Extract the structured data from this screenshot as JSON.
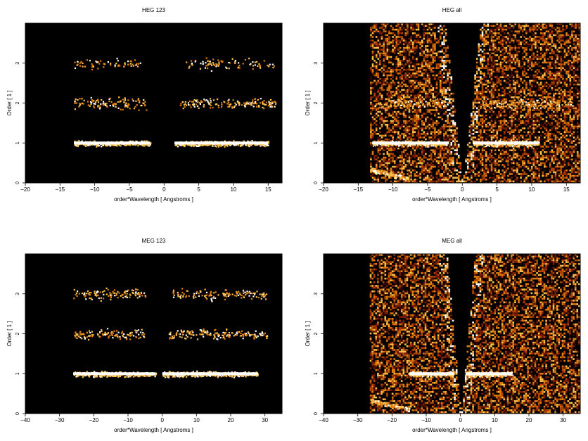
{
  "figure": {
    "colormap": [
      "#000000",
      "#3a0700",
      "#7a1d00",
      "#b34700",
      "#e07f10",
      "#ffc04a",
      "#ffffff"
    ]
  },
  "chart_data": [
    {
      "type": "heatmap",
      "title": "HEG 123",
      "xlabel": "order*Wavelength [ Angstroms ]",
      "ylabel": "Order [ 1 ]",
      "xlim": [
        -20,
        17
      ],
      "ylim": [
        0,
        4
      ],
      "xticks": [
        -20,
        -15,
        -10,
        -5,
        0,
        5,
        10,
        15
      ],
      "yticks": [
        0,
        1,
        2,
        3
      ],
      "bands": [
        {
          "order": 1,
          "x": [
            -13,
            -2
          ],
          "weight": 1.0
        },
        {
          "order": 1,
          "x": [
            1.5,
            15
          ],
          "weight": 1.0
        },
        {
          "order": 2,
          "x": [
            -13,
            -2.5
          ],
          "weight": 0.35
        },
        {
          "order": 2,
          "x": [
            2.2,
            16
          ],
          "weight": 0.35
        },
        {
          "order": 3,
          "x": [
            -13,
            -3.5
          ],
          "weight": 0.2
        },
        {
          "order": 3,
          "x": [
            3,
            16
          ],
          "weight": 0.2
        }
      ],
      "background": "none"
    },
    {
      "type": "heatmap",
      "title": "HEG all",
      "xlabel": "order*Wavelength [ Angstroms ]",
      "ylabel": "Order [ 1 ]",
      "xlim": [
        -20,
        17
      ],
      "ylim": [
        0,
        4
      ],
      "xticks": [
        -20,
        -15,
        -10,
        -5,
        0,
        5,
        10,
        15
      ],
      "yticks": [
        0,
        1,
        2,
        3
      ],
      "bands": [
        {
          "order": 1,
          "x": [
            -13,
            -2
          ],
          "weight": 1.0
        },
        {
          "order": 1,
          "x": [
            1.5,
            11
          ],
          "weight": 1.0
        },
        {
          "order": 2,
          "x": [
            -13,
            -2.5
          ],
          "weight": 0.35
        },
        {
          "order": 2,
          "x": [
            2.2,
            16
          ],
          "weight": 0.35
        }
      ],
      "background": "wedge"
    },
    {
      "type": "heatmap",
      "title": "MEG 123",
      "xlabel": "order*Wavelength [ Angstroms ]",
      "ylabel": "Order [ 1 ]",
      "xlim": [
        -40,
        35
      ],
      "ylim": [
        0,
        4
      ],
      "xticks": [
        -40,
        -30,
        -20,
        -10,
        0,
        10,
        20,
        30
      ],
      "yticks": [
        0,
        1,
        2,
        3
      ],
      "bands": [
        {
          "order": 1,
          "x": [
            -26,
            -2
          ],
          "weight": 1.0
        },
        {
          "order": 1,
          "x": [
            0,
            28
          ],
          "weight": 1.0
        },
        {
          "order": 2,
          "x": [
            -26,
            -5
          ],
          "weight": 0.35
        },
        {
          "order": 2,
          "x": [
            1.5,
            31
          ],
          "weight": 0.35
        },
        {
          "order": 3,
          "x": [
            -26,
            -5
          ],
          "weight": 0.35
        },
        {
          "order": 3,
          "x": [
            3,
            31
          ],
          "weight": 0.3
        }
      ],
      "background": "none"
    },
    {
      "type": "heatmap",
      "title": "MEG all",
      "xlabel": "order*Wavelength [ Angstroms ]",
      "ylabel": "Order [ 1 ]",
      "xlim": [
        -40,
        35
      ],
      "ylim": [
        0,
        4
      ],
      "xticks": [
        -40,
        -30,
        -20,
        -10,
        0,
        10,
        20,
        30
      ],
      "yticks": [
        0,
        1,
        2,
        3
      ],
      "bands": [
        {
          "order": 1,
          "x": [
            -15,
            -2
          ],
          "weight": 1.0
        },
        {
          "order": 1,
          "x": [
            1.5,
            15
          ],
          "weight": 1.0
        }
      ],
      "background": "wedge"
    }
  ]
}
